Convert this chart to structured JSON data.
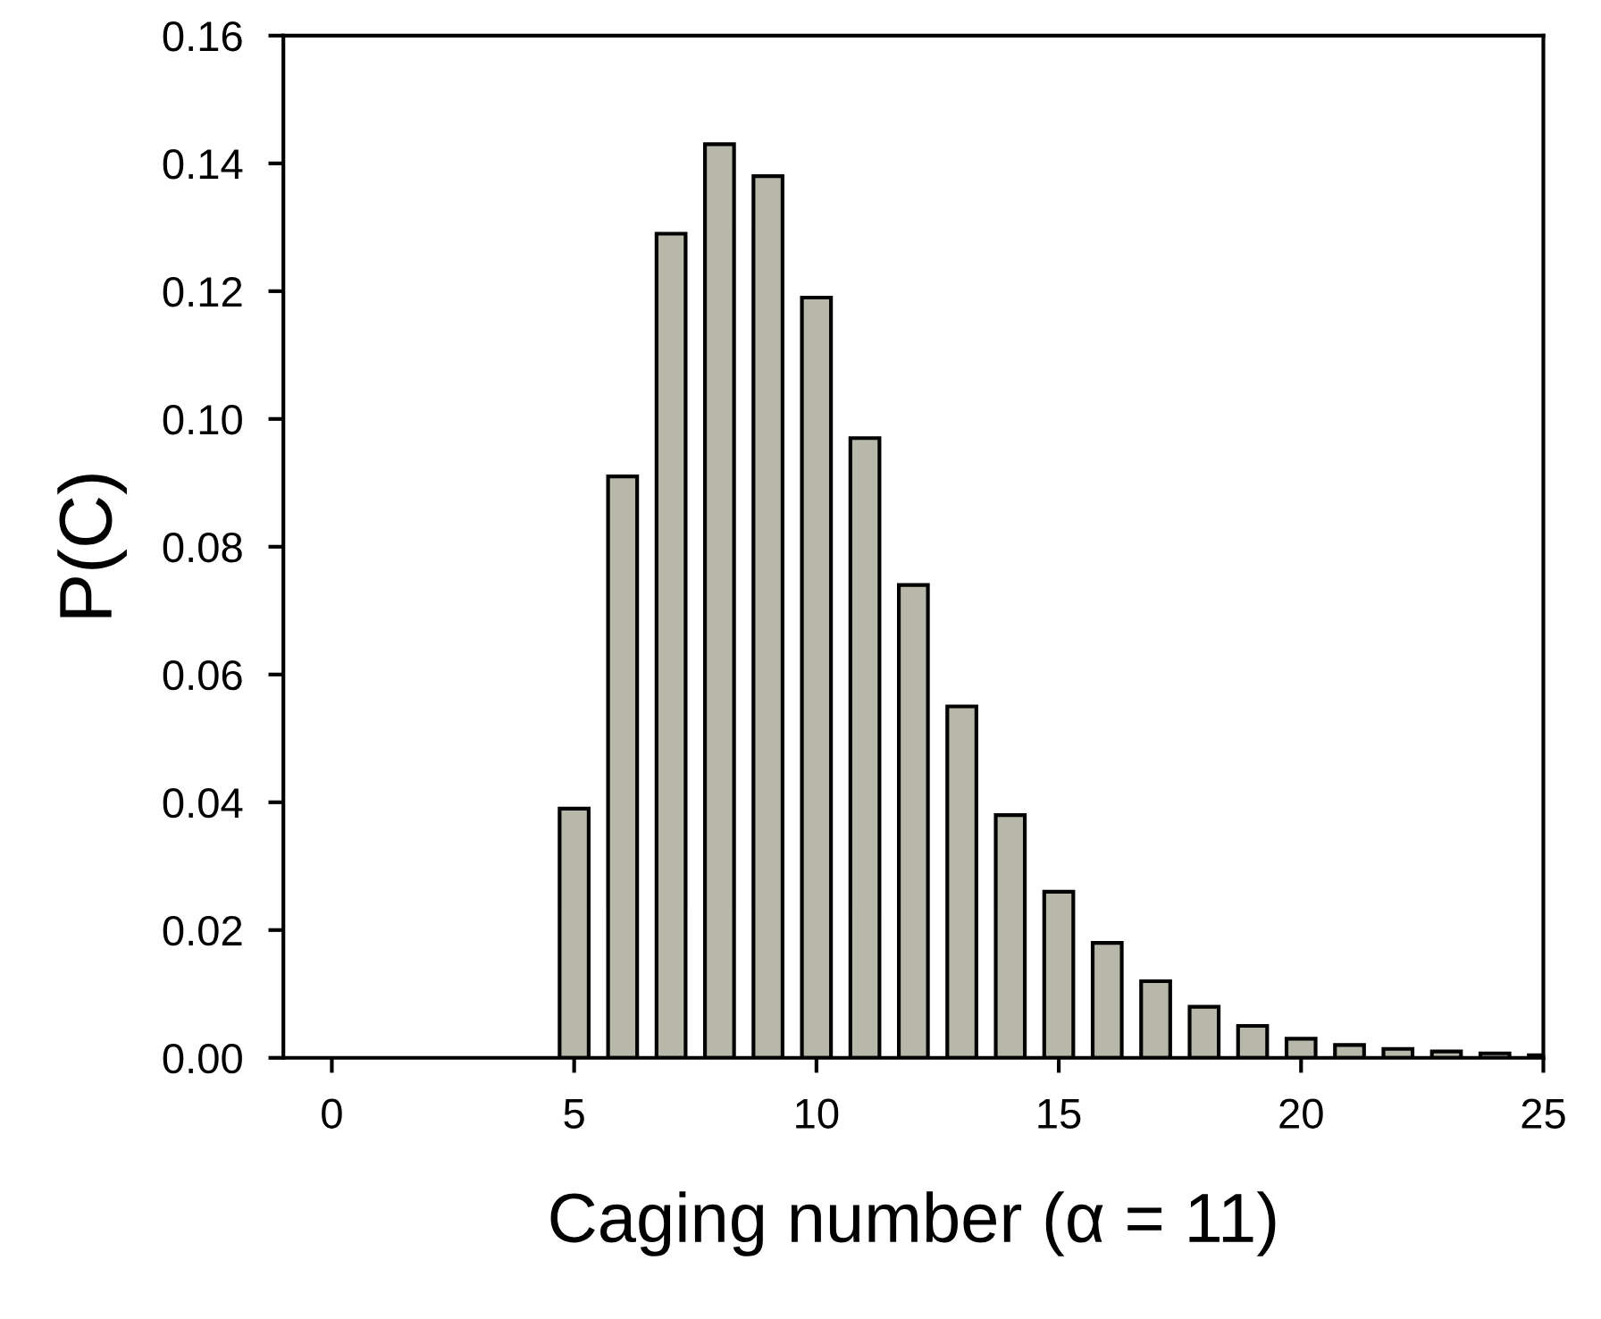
{
  "chart_data": {
    "type": "bar",
    "xlabel": "Caging number (α = 11)",
    "ylabel": "P(C)",
    "x": [
      5,
      6,
      7,
      8,
      9,
      10,
      11,
      12,
      13,
      14,
      15,
      16,
      17,
      18,
      19,
      20,
      21,
      22,
      23,
      24,
      25
    ],
    "values": [
      0.039,
      0.091,
      0.129,
      0.143,
      0.138,
      0.119,
      0.097,
      0.074,
      0.055,
      0.038,
      0.026,
      0.018,
      0.012,
      0.008,
      0.005,
      0.003,
      0.002,
      0.0014,
      0.001,
      0.0007,
      0.0004
    ],
    "color": "#b8b8aa",
    "xlim": [
      -1,
      25
    ],
    "xticks": [
      0,
      5,
      10,
      15,
      20,
      25
    ],
    "ylim": [
      0,
      0.16
    ],
    "yticks": [
      {
        "value": 0,
        "label": "0.00"
      },
      {
        "value": 0.02,
        "label": "0.02"
      },
      {
        "value": 0.04,
        "label": "0.04"
      },
      {
        "value": 0.06,
        "label": "0.06"
      },
      {
        "value": 0.08,
        "label": "0.08"
      },
      {
        "value": 0.1,
        "label": "0.10"
      },
      {
        "value": 0.12,
        "label": "0.12"
      },
      {
        "value": 0.14,
        "label": "0.14"
      },
      {
        "value": 0.16,
        "label": "0.16"
      }
    ],
    "grid": false
  }
}
